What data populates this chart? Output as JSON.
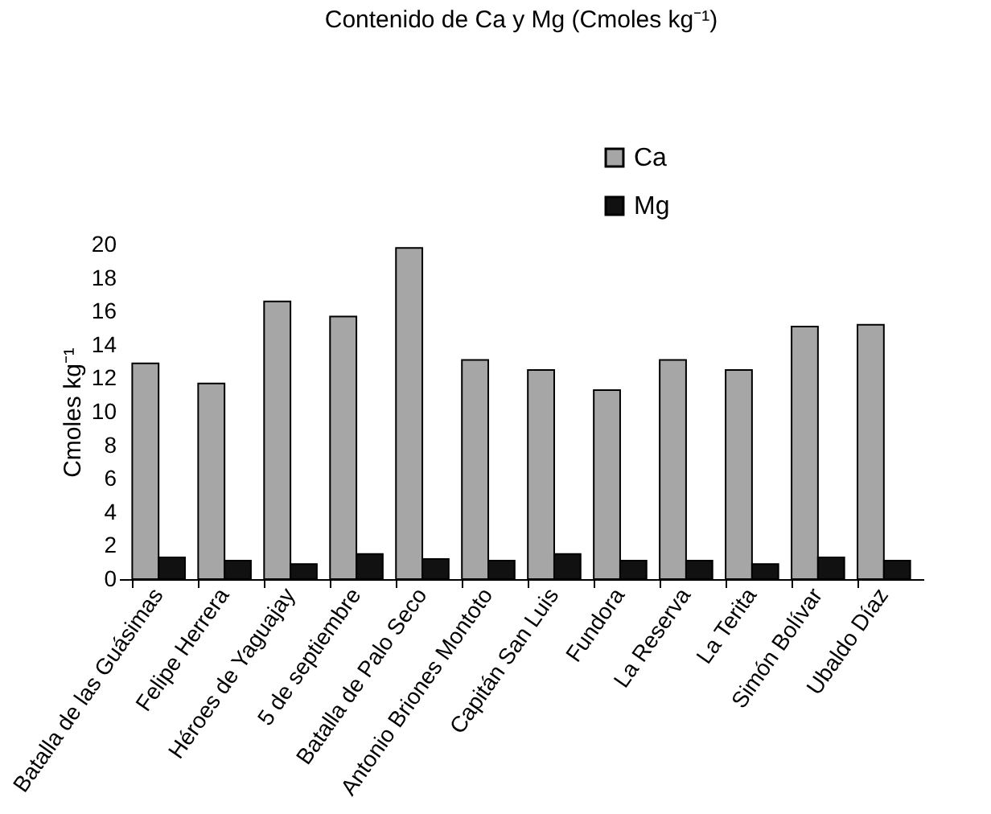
{
  "chart_data": {
    "type": "bar",
    "title": "Contenido de Ca y Mg (Cmoles kg⁻¹)",
    "ylabel": "Cmoles kg⁻¹",
    "categories": [
      "Batalla de las Guásimas",
      "Felipe Herrera",
      "Héroes de Yaguajay",
      "5 de septiembre",
      "Batalla de Palo Seco",
      "Antonio Briones Montoto",
      "Capitán San Luis",
      "Fundora",
      "La Reserva",
      "La Terita",
      "Simón Bolívar",
      "Ubaldo Díaz"
    ],
    "series": [
      {
        "name": "Ca",
        "color": "#a6a6a6",
        "values": [
          12.9,
          11.7,
          16.6,
          15.7,
          19.8,
          13.1,
          12.5,
          11.3,
          13.1,
          12.5,
          15.1,
          15.2
        ]
      },
      {
        "name": "Mg",
        "color": "#111111",
        "values": [
          1.3,
          1.1,
          0.9,
          1.5,
          1.2,
          1.1,
          1.5,
          1.1,
          1.1,
          0.9,
          1.3,
          1.1
        ]
      }
    ],
    "ylim": [
      0,
      20
    ],
    "yticks": [
      0,
      2,
      4,
      6,
      8,
      10,
      12,
      14,
      16,
      18,
      20
    ],
    "grid": false,
    "legend": "top right"
  }
}
